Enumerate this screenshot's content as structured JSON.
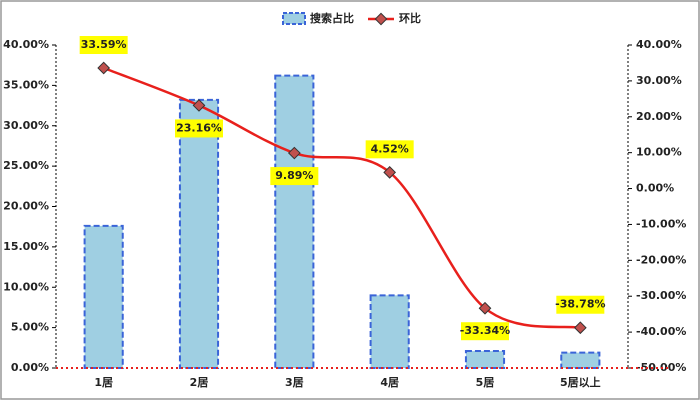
{
  "chart_data": {
    "type": "bar",
    "categories": [
      "1居",
      "2居",
      "3居",
      "4居",
      "5居",
      "5居以上"
    ],
    "series": [
      {
        "name": "搜索占比",
        "color": "#9fcfe2",
        "values": [
          17.6,
          33.2,
          36.2,
          9.0,
          2.1,
          1.9
        ]
      },
      {
        "name": "环比",
        "color": "#e8201c",
        "axis": "y2",
        "values": [
          33.59,
          23.16,
          9.89,
          4.52,
          -33.34,
          -38.78
        ],
        "value_labels": [
          "33.59%",
          "23.16%",
          "9.89%",
          "4.52%",
          "-33.34%",
          "-38.78%"
        ]
      }
    ],
    "ylim": [
      0,
      40
    ],
    "yticks": [
      {
        "value": 0,
        "label": "0.00%"
      },
      {
        "value": 5,
        "label": "5.00%"
      },
      {
        "value": 10,
        "label": "10.00%"
      },
      {
        "value": 15,
        "label": "15.00%"
      },
      {
        "value": 20,
        "label": "20.00%"
      },
      {
        "value": 25,
        "label": "25.00%"
      },
      {
        "value": 30,
        "label": "30.00%"
      },
      {
        "value": 35,
        "label": "35.00%"
      },
      {
        "value": 40,
        "label": "40.00%"
      }
    ],
    "y2lim": [
      -50,
      40
    ],
    "y2ticks": [
      {
        "value": -50,
        "label": "-50.00%"
      },
      {
        "value": -40,
        "label": "-40.00%"
      },
      {
        "value": -30,
        "label": "-30.00%"
      },
      {
        "value": -20,
        "label": "-20.00%"
      },
      {
        "value": -10,
        "label": "-10.00%"
      },
      {
        "value": 0,
        "label": "0.00%"
      },
      {
        "value": 10,
        "label": "10.00%"
      },
      {
        "value": 20,
        "label": "20.00%"
      },
      {
        "value": 30,
        "label": "30.00%"
      },
      {
        "value": 40,
        "label": "40.00%"
      }
    ],
    "legend": "top"
  }
}
